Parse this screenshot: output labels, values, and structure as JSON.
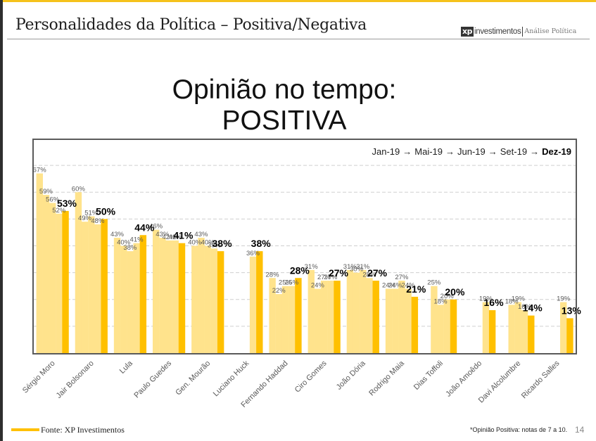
{
  "header": {
    "title": "Personalidades da Política – Positiva/Negativa",
    "logo": {
      "mark": "xp",
      "brand": "investimentos",
      "section": "Análise Política"
    }
  },
  "slide": {
    "title_line1": "Opinião no tempo:",
    "title_line2": "POSITIVA"
  },
  "colors": {
    "accent": "#FFC000",
    "light_bar": "#FFE38C",
    "frame": "#5A5A5A",
    "top_stripe": "#F5C21B"
  },
  "chart_data": {
    "type": "bar",
    "title": "Opinião no tempo: POSITIVA",
    "xlabel": "",
    "ylabel": "",
    "ylim": [
      0,
      80
    ],
    "grid": true,
    "grid_step": 10,
    "value_suffix": "%",
    "legend": {
      "placement": "top-right",
      "separator": "→",
      "highlight": "Dez-19"
    },
    "categories": [
      "Sérgio Moro",
      "Jair Bolsonaro",
      "Lula",
      "Paulo Guedes",
      "Gen. Mourão",
      "Luciano Huck",
      "Fernando Haddad",
      "Ciro Gomes",
      "João Dória",
      "Rodrigo Maia",
      "Dias Toffoli",
      "João Amoêdo",
      "Davi Alcolumbre",
      "Ricardo Salles"
    ],
    "series": [
      {
        "name": "Jan-19",
        "color": "#FFE38C",
        "values": [
          67,
          60,
          43,
          46,
          40,
          null,
          28,
          31,
          31,
          24,
          null,
          null,
          null,
          null
        ]
      },
      {
        "name": "Mai-19",
        "color": "#FFE38C",
        "values": [
          59,
          49,
          40,
          43,
          43,
          null,
          22,
          24,
          30,
          24,
          25,
          null,
          18,
          null
        ]
      },
      {
        "name": "Jun-19",
        "color": "#FFE38C",
        "values": [
          56,
          51,
          38,
          42,
          40,
          null,
          25,
          27,
          31,
          27,
          18,
          null,
          19,
          null
        ]
      },
      {
        "name": "Set-19",
        "color": "#FFE38C",
        "values": [
          52,
          48,
          41,
          42,
          39,
          36,
          25,
          27,
          28,
          24,
          20,
          19,
          16,
          19
        ]
      },
      {
        "name": "Dez-19",
        "color": "#FFC000",
        "values": [
          53,
          50,
          44,
          41,
          38,
          38,
          28,
          27,
          27,
          21,
          20,
          16,
          14,
          13
        ]
      }
    ]
  },
  "footer": {
    "source": "Fonte: XP Investimentos",
    "note": "*Opinião Positiva: notas de 7 a 10.",
    "page_number": "14"
  }
}
